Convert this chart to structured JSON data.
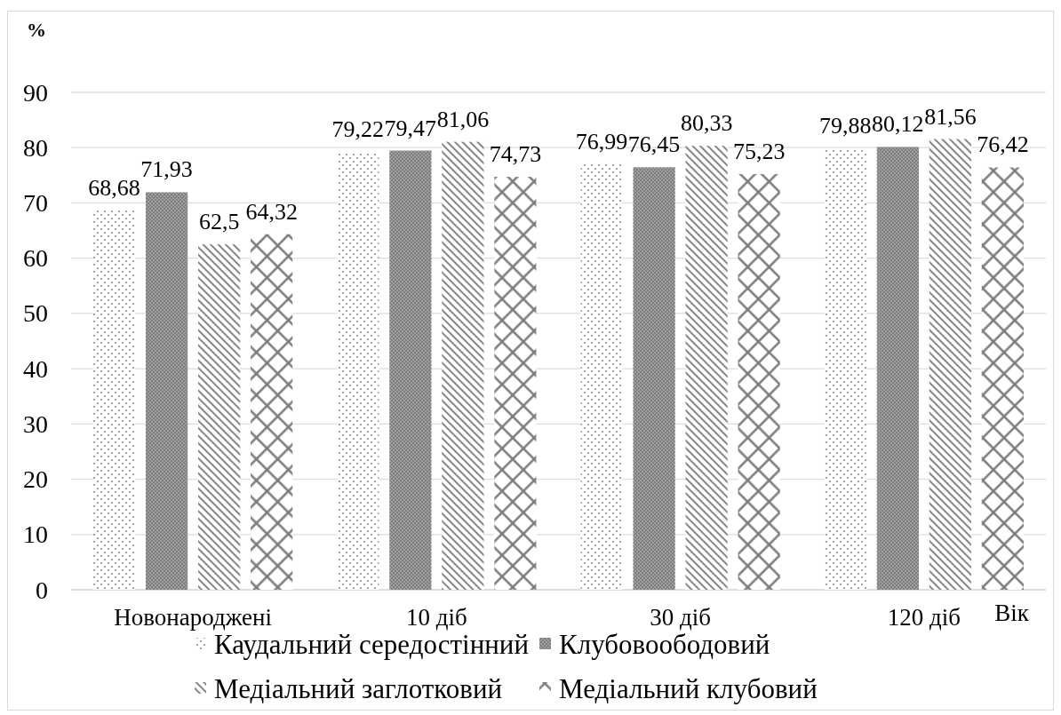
{
  "chart_data": {
    "type": "bar",
    "ylabel": "%",
    "xlabel": "Вік",
    "categories": [
      "Новонароджені",
      "10 діб",
      "30 діб",
      "120 діб"
    ],
    "series": [
      {
        "name": "Каудальний середостінний",
        "color": "#8c8c8c",
        "values": [
          68.68,
          79.22,
          76.99,
          79.88
        ],
        "value_labels": [
          "68,68",
          "79,22",
          "76,99",
          "79,88"
        ]
      },
      {
        "name": "Клубовоободовий",
        "color": "#7f7f7f",
        "values": [
          71.93,
          79.47,
          76.45,
          80.12
        ],
        "value_labels": [
          "71,93",
          "79,47",
          "76,45",
          "80,12"
        ]
      },
      {
        "name": "Медіальний заглотковий",
        "color": "#868686",
        "values": [
          62.5,
          81.06,
          80.33,
          81.56
        ],
        "value_labels": [
          "62,5",
          "81,06",
          "80,33",
          "81,56"
        ]
      },
      {
        "name": "Медіальний клубовий",
        "color": "#7a7a7a",
        "values": [
          64.32,
          74.73,
          75.23,
          76.42
        ],
        "value_labels": [
          "64,32",
          "74,73",
          "75,23",
          "76,42"
        ]
      }
    ],
    "ylim": [
      0,
      90
    ],
    "yticks": [
      0,
      10,
      20,
      30,
      40,
      50,
      60,
      70,
      80,
      90
    ],
    "grid": "y",
    "legend": "bottom"
  }
}
